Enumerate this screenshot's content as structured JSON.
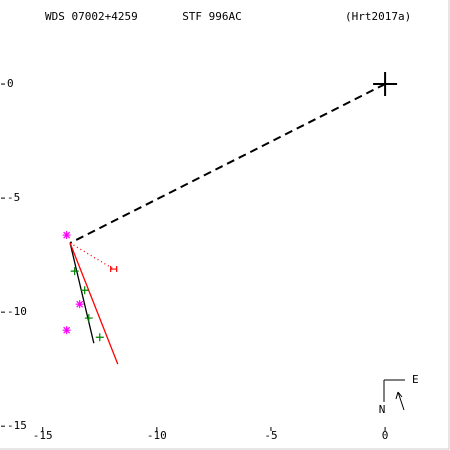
{
  "chart_data": {
    "type": "scatter",
    "title_left": "WDS 07002+4259",
    "title_center": "STF 996AC",
    "title_right": "(Hrt2017a)",
    "compass_north": "N",
    "compass_east": "E",
    "xlim": [
      -15.6,
      2.8
    ],
    "ylim": [
      -16.0,
      2.37
    ],
    "xticks": [
      -15,
      -10,
      -5,
      0
    ],
    "yticks": [
      0,
      -5,
      -10,
      -15
    ],
    "grid": false,
    "series": [
      {
        "style": "big-plus",
        "color": "#000000",
        "x": [
          0
        ],
        "values": [
          0
        ]
      },
      {
        "style": "dashed",
        "color": "#000000",
        "x": [
          0,
          -13.8
        ],
        "values": [
          0,
          -6.97
        ]
      },
      {
        "style": "solid",
        "color": "#000000",
        "x": [
          -13.8,
          -12.76
        ],
        "values": [
          -6.97,
          -11.36
        ]
      },
      {
        "style": "solid",
        "color": "#ff0000",
        "x": [
          -13.8,
          -11.71
        ],
        "values": [
          -6.97,
          -12.28
        ]
      },
      {
        "style": "dotted",
        "color": "#ff0000",
        "x": [
          -13.8,
          -11.89
        ],
        "values": [
          -6.97,
          -8.11
        ]
      },
      {
        "style": "h-mark",
        "color": "#ff0000",
        "x": [
          -11.89
        ],
        "values": [
          -8.11
        ]
      },
      {
        "style": "plus",
        "color": "#008000",
        "x": [
          -13.6,
          -13.16,
          -12.98,
          -12.5
        ],
        "values": [
          -8.2,
          -9.04,
          -10.26,
          -11.1
        ]
      },
      {
        "style": "asterisk",
        "color": "#ff00ff",
        "x": [
          -13.95,
          -13.38,
          -13.95
        ],
        "values": [
          -6.62,
          -9.65,
          -10.79
        ]
      }
    ]
  }
}
